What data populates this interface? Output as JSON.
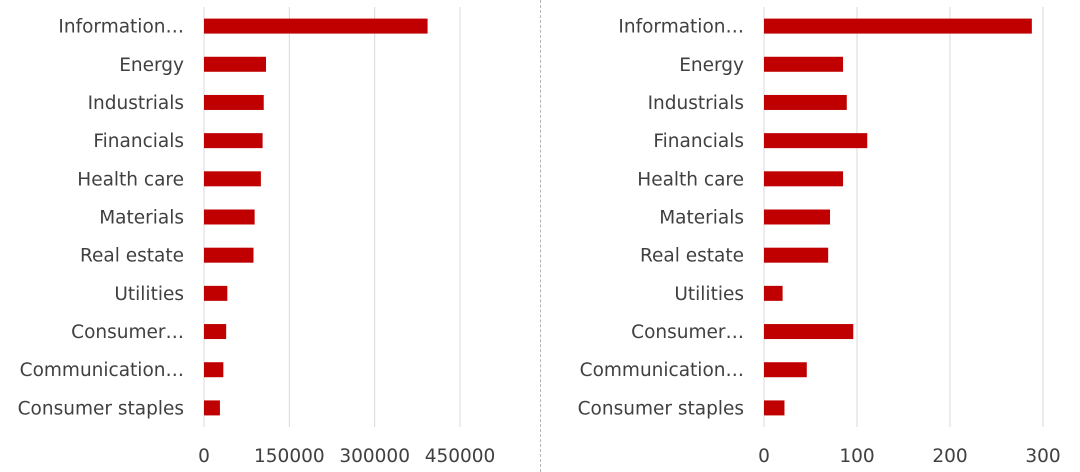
{
  "colors": {
    "bar": "#c00000",
    "grid": "#d9d9d9",
    "text": "#404040",
    "divider": "#b4b4b4"
  },
  "chart_data": [
    {
      "type": "bar",
      "orientation": "horizontal",
      "categories": [
        "Information…",
        "Energy",
        "Industrials",
        "Financials",
        "Health care",
        "Materials",
        "Real estate",
        "Utilities",
        "Consumer…",
        "Communication…",
        "Consumer staples"
      ],
      "values": [
        393000,
        109000,
        105000,
        103000,
        100000,
        89000,
        87000,
        41000,
        39000,
        34000,
        28000
      ],
      "xlim": [
        0,
        450000
      ],
      "xticks": [
        "0",
        "150000",
        "300000",
        "450000"
      ],
      "tick_values": [
        0,
        150000,
        300000,
        450000
      ],
      "grid": true,
      "title": "",
      "xlabel": "",
      "ylabel": ""
    },
    {
      "type": "bar",
      "orientation": "horizontal",
      "categories": [
        "Information…",
        "Energy",
        "Industrials",
        "Financials",
        "Health care",
        "Materials",
        "Real estate",
        "Utilities",
        "Consumer…",
        "Communication…",
        "Consumer staples"
      ],
      "values": [
        288,
        85,
        89,
        111,
        85,
        71,
        69,
        20,
        96,
        46,
        22
      ],
      "xlim": [
        0,
        300
      ],
      "xticks": [
        "0",
        "100",
        "200",
        "300"
      ],
      "tick_values": [
        0,
        100,
        200,
        300
      ],
      "grid": true,
      "title": "",
      "xlabel": "",
      "ylabel": ""
    }
  ]
}
